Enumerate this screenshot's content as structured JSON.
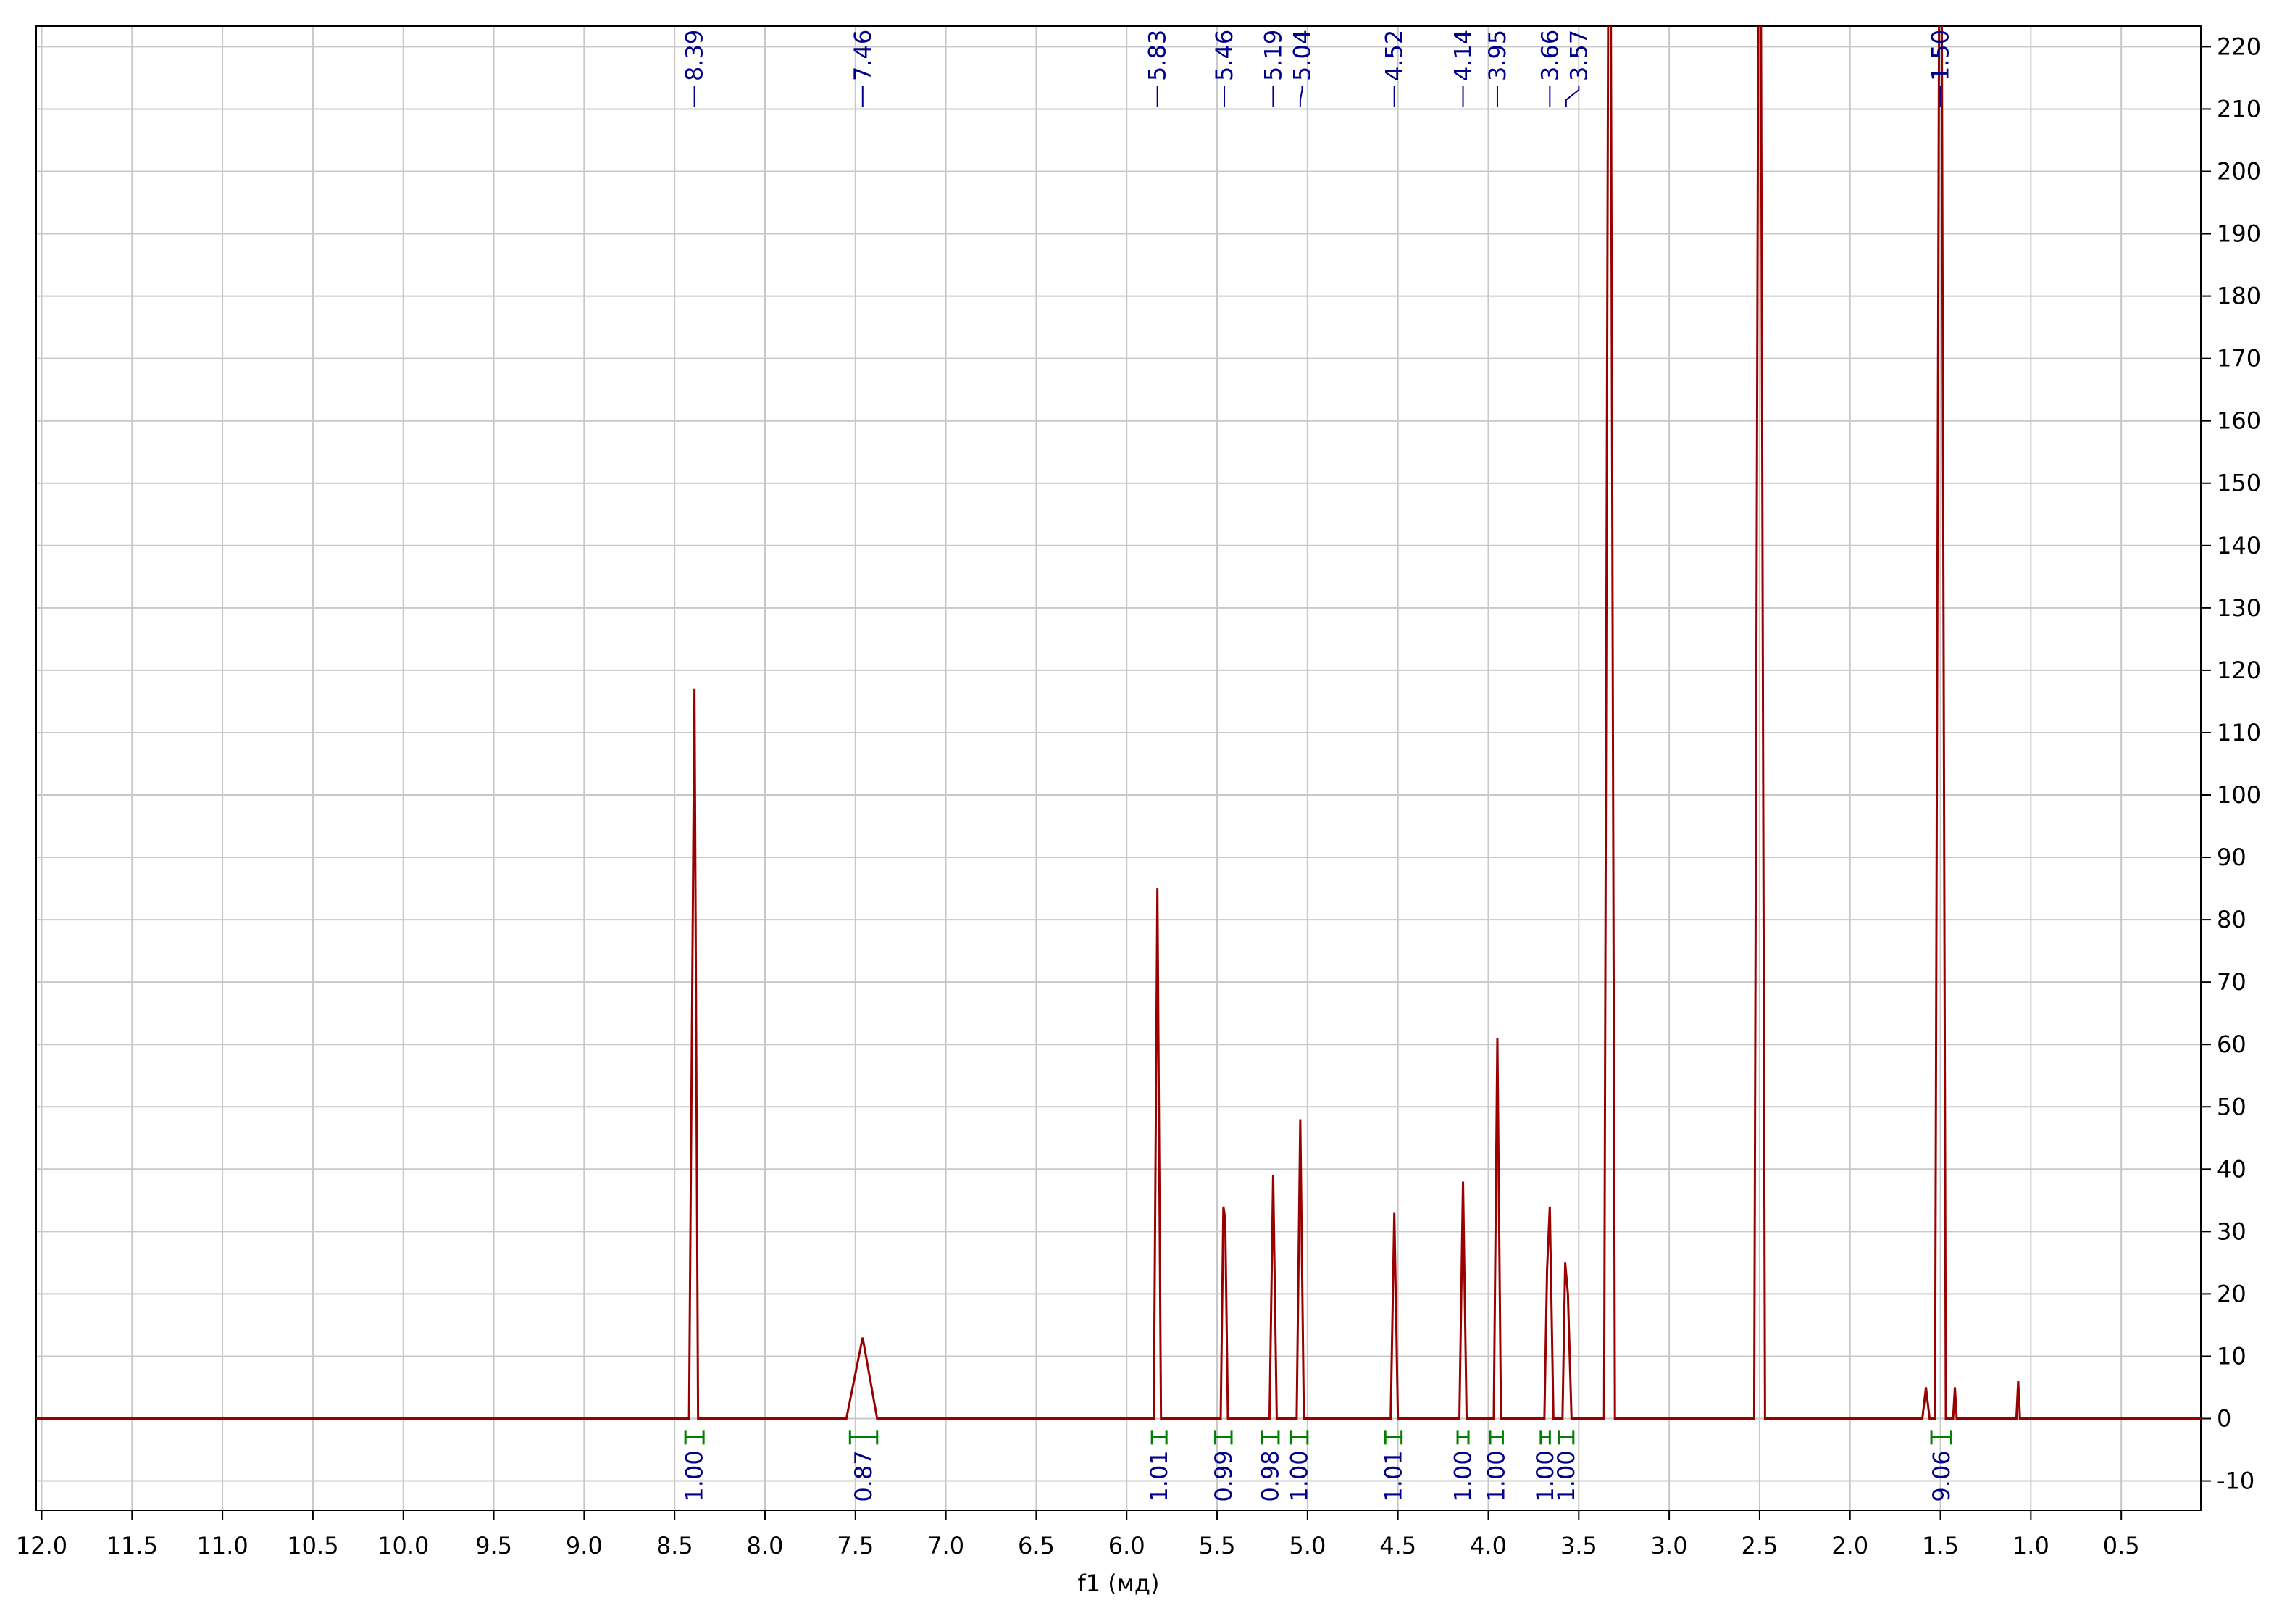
{
  "chart_data": {
    "type": "line",
    "x_label": "f1 (мд)",
    "xlim": [
      12.03,
      0.06
    ],
    "ylim": [
      -14.7,
      223.3
    ],
    "xticks": [
      {
        "value": 12,
        "label": "12.0"
      },
      11.5,
      {
        "value": 11,
        "label": "11.0"
      },
      10.5,
      {
        "value": 10,
        "label": "10.0"
      },
      9.5,
      {
        "value": 9,
        "label": "9.0"
      },
      8.5,
      {
        "value": 8,
        "label": "8.0"
      },
      7.5,
      {
        "value": 7,
        "label": "7.0"
      },
      6.5,
      {
        "value": 6,
        "label": "6.0"
      },
      5.5,
      {
        "value": 5,
        "label": "5.0"
      },
      4.5,
      {
        "value": 4,
        "label": "4.0"
      },
      3.5,
      {
        "value": 3,
        "label": "3.0"
      },
      2.5,
      {
        "value": 2,
        "label": "2.0"
      },
      1.5,
      {
        "value": 1,
        "label": "1.0"
      },
      0.5
    ],
    "yticks": [
      -10,
      0,
      10,
      20,
      30,
      40,
      50,
      60,
      70,
      80,
      90,
      100,
      110,
      120,
      130,
      140,
      150,
      160,
      170,
      180,
      190,
      200,
      210,
      220
    ],
    "grid": true,
    "series": [
      {
        "color": "#990000",
        "x": [
          12.03,
          8.42,
          8.39,
          8.37,
          7.55,
          7.46,
          7.38,
          5.85,
          5.83,
          5.81,
          5.48,
          5.465,
          5.455,
          5.44,
          5.21,
          5.19,
          5.17,
          5.06,
          5.04,
          5.02,
          4.54,
          4.52,
          4.5,
          4.16,
          4.14,
          4.12,
          3.97,
          3.95,
          3.93,
          3.69,
          3.675,
          3.66,
          3.64,
          3.59,
          3.575,
          3.56,
          3.54,
          3.36,
          3.33,
          3.3,
          2.53,
          2.5,
          2.47,
          1.6,
          1.58,
          1.56,
          1.53,
          1.5,
          1.47,
          1.43,
          1.42,
          1.41,
          1.08,
          1.07,
          1.06,
          0.06
        ],
        "values": [
          0,
          0,
          117,
          0,
          0,
          13,
          0,
          0,
          85,
          0,
          0,
          34,
          32,
          0,
          0,
          39,
          0,
          0,
          48,
          0,
          0,
          33,
          0,
          0,
          38,
          0,
          0,
          61,
          0,
          0,
          24,
          34,
          0,
          0,
          25,
          20,
          0,
          0,
          300,
          0,
          0,
          300,
          0,
          0,
          5,
          0,
          0,
          300,
          0,
          0,
          5,
          0,
          0,
          6,
          0,
          0
        ]
      }
    ],
    "peaks": [
      {
        "value": 8.39,
        "label": "8.39"
      },
      {
        "value": 7.46,
        "label": "7.46"
      },
      {
        "value": 5.83,
        "label": "5.83"
      },
      {
        "value": 5.46,
        "label": "5.46"
      },
      {
        "value": 5.19,
        "label": "5.19"
      },
      {
        "value": 5.04,
        "label": "5.04"
      },
      {
        "value": 4.52,
        "label": "4.52"
      },
      {
        "value": 4.14,
        "label": "4.14"
      },
      {
        "value": 3.95,
        "label": "3.95"
      },
      {
        "value": 3.66,
        "label": "3.66"
      },
      {
        "value": 3.57,
        "label": "3.57"
      },
      {
        "value": 1.5,
        "label": "1.50"
      }
    ],
    "integrals": [
      {
        "label": "1.00",
        "range": [
          8.44,
          8.34
        ]
      },
      {
        "label": "0.87",
        "range": [
          7.53,
          7.38
        ]
      },
      {
        "label": "1.01",
        "range": [
          5.86,
          5.78
        ]
      },
      {
        "label": "0.99",
        "range": [
          5.51,
          5.42
        ]
      },
      {
        "label": "0.98",
        "range": [
          5.25,
          5.16
        ]
      },
      {
        "label": "1.00",
        "range": [
          5.09,
          5.0
        ]
      },
      {
        "label": "1.01",
        "range": [
          4.57,
          4.48
        ]
      },
      {
        "label": "1.00",
        "range": [
          4.17,
          4.11
        ]
      },
      {
        "label": "1.00",
        "range": [
          3.99,
          3.92
        ]
      },
      {
        "label": "1.00",
        "range": [
          3.71,
          3.66
        ]
      },
      {
        "label": "1.00",
        "range": [
          3.61,
          3.53
        ]
      },
      {
        "label": "9.06",
        "range": [
          1.55,
          1.44
        ]
      }
    ]
  }
}
